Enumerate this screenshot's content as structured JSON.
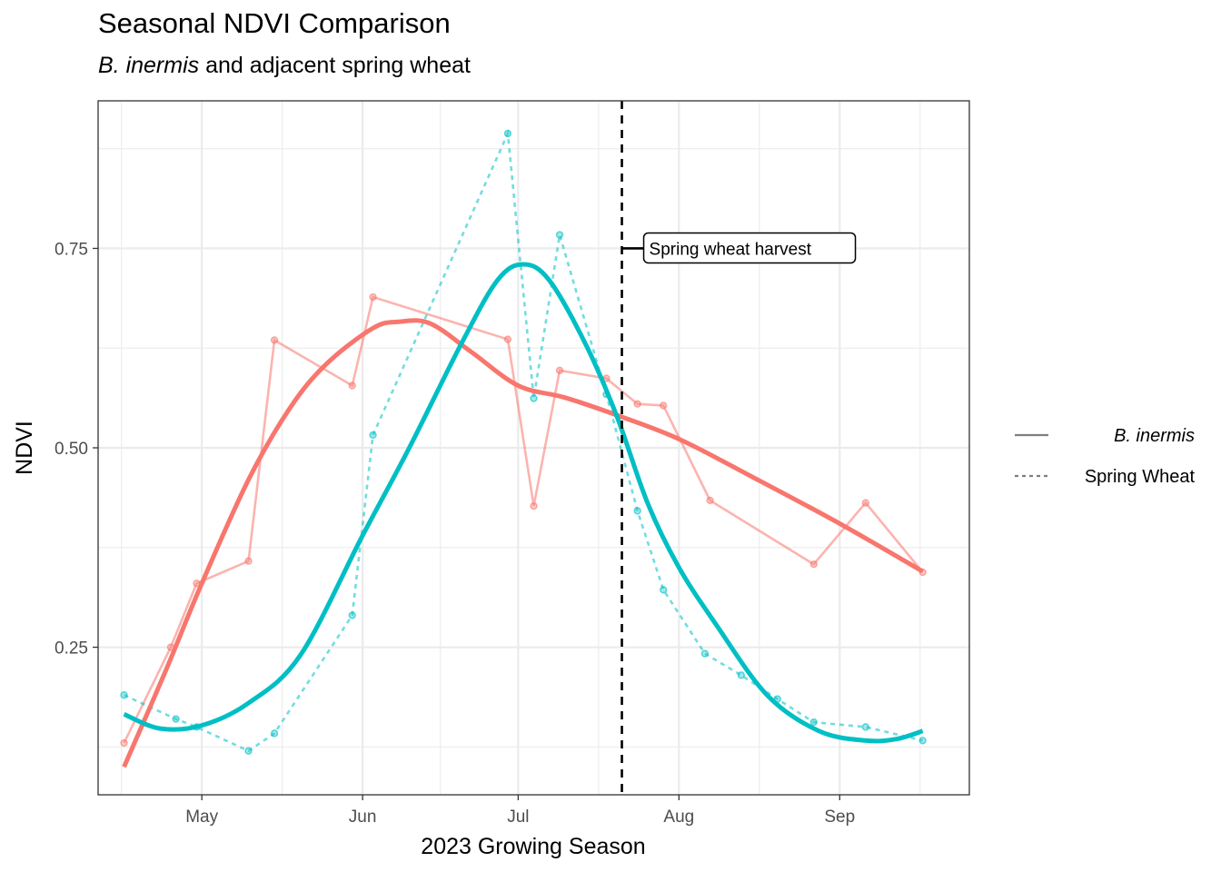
{
  "chart_data": {
    "type": "line",
    "title": "Seasonal NDVI Comparison",
    "subtitle_italic": "B. inermis",
    "subtitle_rest": " and adjacent spring wheat",
    "xlabel": "2023 Growing Season",
    "ylabel": "NDVI",
    "x_type": "date",
    "xlim": [
      "2023-04-11",
      "2023-09-26"
    ],
    "ylim": [
      0.065,
      0.935
    ],
    "x_ticks": [
      {
        "date": "2023-05-01",
        "label": "May"
      },
      {
        "date": "2023-06-01",
        "label": "Jun"
      },
      {
        "date": "2023-07-01",
        "label": "Jul"
      },
      {
        "date": "2023-08-01",
        "label": "Aug"
      },
      {
        "date": "2023-09-01",
        "label": "Sep"
      }
    ],
    "y_ticks": [
      {
        "value": 0.25,
        "label": "0.25"
      },
      {
        "value": 0.5,
        "label": "0.50"
      },
      {
        "value": 0.75,
        "label": "0.75"
      }
    ],
    "y_minor": [
      0.125,
      0.375,
      0.625,
      0.875
    ],
    "grid": true,
    "legend_position": "right",
    "series": [
      {
        "name": "B. inermis",
        "name_italic": true,
        "color": "#F8766D",
        "linetype": "solid",
        "points": [
          [
            "2023-04-16",
            0.13
          ],
          [
            "2023-04-25",
            0.25
          ],
          [
            "2023-05-00",
            0.33
          ],
          [
            "2023-05-10",
            0.358
          ],
          [
            "2023-05-15",
            0.635
          ],
          [
            "2023-05-30",
            0.578
          ],
          [
            "2023-06-03",
            0.689
          ],
          [
            "2023-06-29",
            0.636
          ],
          [
            "2023-07-04",
            0.427
          ],
          [
            "2023-07-09",
            0.597
          ],
          [
            "2023-07-18",
            0.587
          ],
          [
            "2023-07-24",
            0.555
          ],
          [
            "2023-07-29",
            0.553
          ],
          [
            "2023-08-07",
            0.434
          ],
          [
            "2023-08-27",
            0.354
          ],
          [
            "2023-09-06",
            0.431
          ],
          [
            "2023-09-17",
            0.344
          ]
        ],
        "smooth": [
          [
            "2023-04-16",
            0.1
          ],
          [
            "2023-04-24",
            0.22
          ],
          [
            "2023-05-01",
            0.33
          ],
          [
            "2023-05-10",
            0.46
          ],
          [
            "2023-05-18",
            0.55
          ],
          [
            "2023-05-25",
            0.605
          ],
          [
            "2023-06-03",
            0.65
          ],
          [
            "2023-06-08",
            0.658
          ],
          [
            "2023-06-14",
            0.656
          ],
          [
            "2023-06-22",
            0.62
          ],
          [
            "2023-07-01",
            0.578
          ],
          [
            "2023-07-10",
            0.563
          ],
          [
            "2023-07-20",
            0.541
          ],
          [
            "2023-08-01",
            0.511
          ],
          [
            "2023-08-15",
            0.464
          ],
          [
            "2023-09-01",
            0.405
          ],
          [
            "2023-09-17",
            0.345
          ]
        ]
      },
      {
        "name": "Spring Wheat",
        "name_italic": false,
        "color": "#00BFC4",
        "linetype": "dashed",
        "points": [
          [
            "2023-04-16",
            0.19
          ],
          [
            "2023-04-26",
            0.16
          ],
          [
            "2023-05-00",
            0.15
          ],
          [
            "2023-05-10",
            0.12
          ],
          [
            "2023-05-15",
            0.142
          ],
          [
            "2023-05-30",
            0.29
          ],
          [
            "2023-06-03",
            0.516
          ],
          [
            "2023-06-29",
            0.894
          ],
          [
            "2023-07-04",
            0.562
          ],
          [
            "2023-07-09",
            0.767
          ],
          [
            "2023-07-18",
            0.567
          ],
          [
            "2023-07-24",
            0.421
          ],
          [
            "2023-07-29",
            0.322
          ],
          [
            "2023-08-06",
            0.242
          ],
          [
            "2023-08-13",
            0.215
          ],
          [
            "2023-08-20",
            0.185
          ],
          [
            "2023-08-27",
            0.156
          ],
          [
            "2023-09-06",
            0.15
          ],
          [
            "2023-09-17",
            0.133
          ]
        ],
        "smooth": [
          [
            "2023-04-16",
            0.166
          ],
          [
            "2023-04-23",
            0.148
          ],
          [
            "2023-05-01",
            0.152
          ],
          [
            "2023-05-10",
            0.18
          ],
          [
            "2023-05-20",
            0.24
          ],
          [
            "2023-06-01",
            0.39
          ],
          [
            "2023-06-10",
            0.5
          ],
          [
            "2023-06-20",
            0.63
          ],
          [
            "2023-06-27",
            0.71
          ],
          [
            "2023-07-02",
            0.73
          ],
          [
            "2023-07-07",
            0.71
          ],
          [
            "2023-07-14",
            0.63
          ],
          [
            "2023-07-20",
            0.54
          ],
          [
            "2023-07-26",
            0.43
          ],
          [
            "2023-08-01",
            0.35
          ],
          [
            "2023-08-08",
            0.28
          ],
          [
            "2023-08-18",
            0.19
          ],
          [
            "2023-08-28",
            0.145
          ],
          [
            "2023-09-06",
            0.133
          ],
          [
            "2023-09-12",
            0.135
          ],
          [
            "2023-09-17",
            0.145
          ]
        ]
      }
    ],
    "annotation": {
      "label": "Spring wheat harvest",
      "x_date": "2023-07-21",
      "y": 0.75
    }
  }
}
